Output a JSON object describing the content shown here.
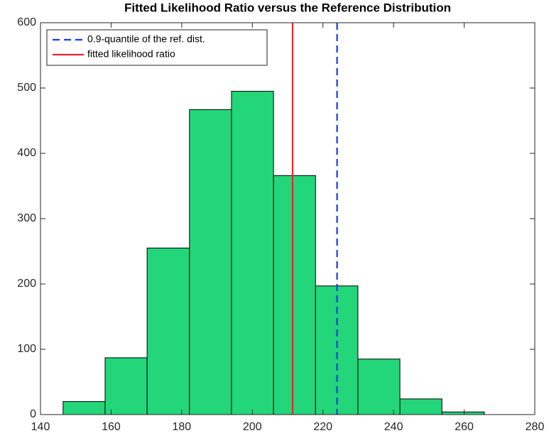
{
  "chart_data": {
    "type": "histogram",
    "title": "Fitted Likelihood Ratio versus the Reference Distribution",
    "bins": [
      146.4,
      158.3,
      170.2,
      182.2,
      194.1,
      206.0,
      217.9,
      229.9,
      241.8,
      253.7,
      265.7
    ],
    "values": [
      20,
      87,
      255,
      467,
      495,
      366,
      197,
      85,
      24,
      4
    ],
    "color": "#23d67a",
    "lines": [
      {
        "name": "0.9-quantile of the ref. dist.",
        "x": 224.0,
        "color": "#1a3ce6",
        "dashed": true
      },
      {
        "name": "fitted likelihood ratio",
        "x": 211.4,
        "color": "#e6262e",
        "dashed": false
      }
    ],
    "xlim": [
      140,
      280
    ],
    "xticks": [
      140,
      160,
      180,
      200,
      220,
      240,
      260,
      280
    ],
    "ylim": [
      0,
      600
    ],
    "yticks": [
      0,
      100,
      200,
      300,
      400,
      500,
      600
    ],
    "legend": "upper-left"
  }
}
